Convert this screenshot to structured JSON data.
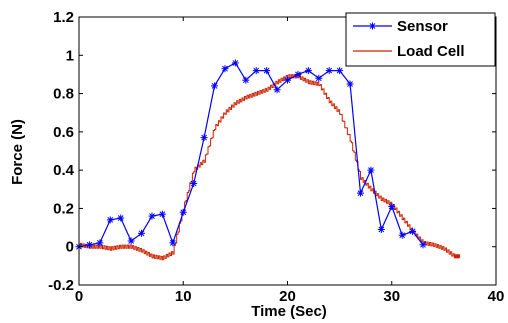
{
  "chart_data": {
    "type": "line",
    "xlabel": "Time (Sec)",
    "ylabel": "Force (N)",
    "xlim": [
      0,
      40
    ],
    "ylim": [
      -0.2,
      1.2
    ],
    "xticks": [
      0,
      10,
      20,
      30,
      40
    ],
    "yticks": [
      -0.2,
      0,
      0.2,
      0.4,
      0.6,
      0.8,
      1,
      1.2
    ],
    "xtick_labels": [
      "0",
      "10",
      "20",
      "30",
      "40"
    ],
    "ytick_labels": [
      "-0.2",
      "0",
      "0.2",
      "0.4",
      "0.6",
      "0.8",
      "1",
      "1.2"
    ],
    "grid": false,
    "legend_position": "top-right",
    "series": [
      {
        "name": "Sensor",
        "color": "#0000ff",
        "marker": "asterisk",
        "x": [
          0,
          1,
          2,
          3,
          4,
          5,
          6,
          7,
          8,
          9,
          10,
          11,
          12,
          13,
          14,
          15,
          16,
          17,
          18,
          19,
          20,
          21,
          22,
          23,
          24,
          25,
          26,
          27,
          28,
          29,
          30,
          31,
          32,
          33
        ],
        "y": [
          0,
          0.01,
          0.02,
          0.14,
          0.15,
          0.03,
          0.07,
          0.16,
          0.17,
          0.02,
          0.18,
          0.33,
          0.57,
          0.84,
          0.93,
          0.96,
          0.87,
          0.92,
          0.92,
          0.82,
          0.87,
          0.9,
          0.92,
          0.88,
          0.92,
          0.92,
          0.85,
          0.28,
          0.4,
          0.09,
          0.21,
          0.06,
          0.08,
          0.01
        ]
      },
      {
        "name": "Load Cell",
        "color": "#cc2200",
        "marker": "none",
        "x": [
          0,
          1,
          2,
          3,
          4,
          5,
          6,
          7,
          8,
          9,
          10,
          11,
          12,
          13,
          14,
          15,
          16,
          17,
          18,
          19,
          20,
          21,
          22,
          23,
          24,
          25,
          26,
          27,
          28,
          29,
          30,
          31,
          32,
          33,
          34,
          35,
          36,
          36.5
        ],
        "y": [
          0.01,
          0.0,
          0.0,
          -0.01,
          0.0,
          0.0,
          -0.02,
          -0.05,
          -0.06,
          -0.03,
          0.2,
          0.4,
          0.45,
          0.62,
          0.7,
          0.75,
          0.78,
          0.8,
          0.82,
          0.86,
          0.89,
          0.89,
          0.86,
          0.85,
          0.76,
          0.7,
          0.56,
          0.36,
          0.3,
          0.25,
          0.22,
          0.15,
          0.08,
          0.02,
          0.01,
          -0.01,
          -0.05,
          -0.05
        ]
      }
    ]
  }
}
